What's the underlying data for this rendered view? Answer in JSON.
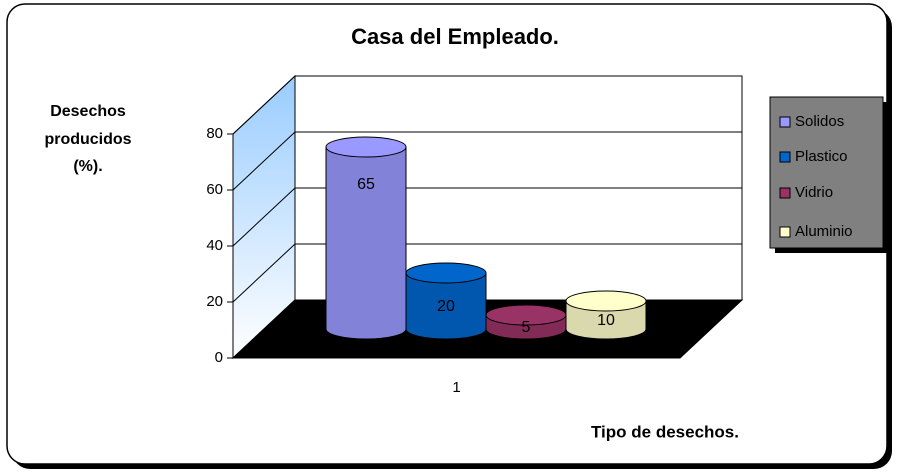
{
  "chart_data": {
    "type": "bar3d",
    "title": "Casa del Empleado.",
    "y_label": [
      "Desechos",
      "producidos",
      "(%)."
    ],
    "x_label": "Tipo de desechos.",
    "categories": [
      "1"
    ],
    "series": [
      {
        "name": "Solidos",
        "color": "#9999ff",
        "values": [
          65
        ]
      },
      {
        "name": "Plastico",
        "color": "#0066cc",
        "values": [
          20
        ]
      },
      {
        "name": "Vidrio",
        "color": "#993366",
        "values": [
          5
        ]
      },
      {
        "name": "Aluminio",
        "color": "#ffffcc",
        "values": [
          10
        ]
      }
    ],
    "ylim": [
      0,
      80
    ],
    "yticks": [
      0,
      20,
      40,
      60,
      80
    ],
    "grid": true,
    "legend": "right"
  }
}
